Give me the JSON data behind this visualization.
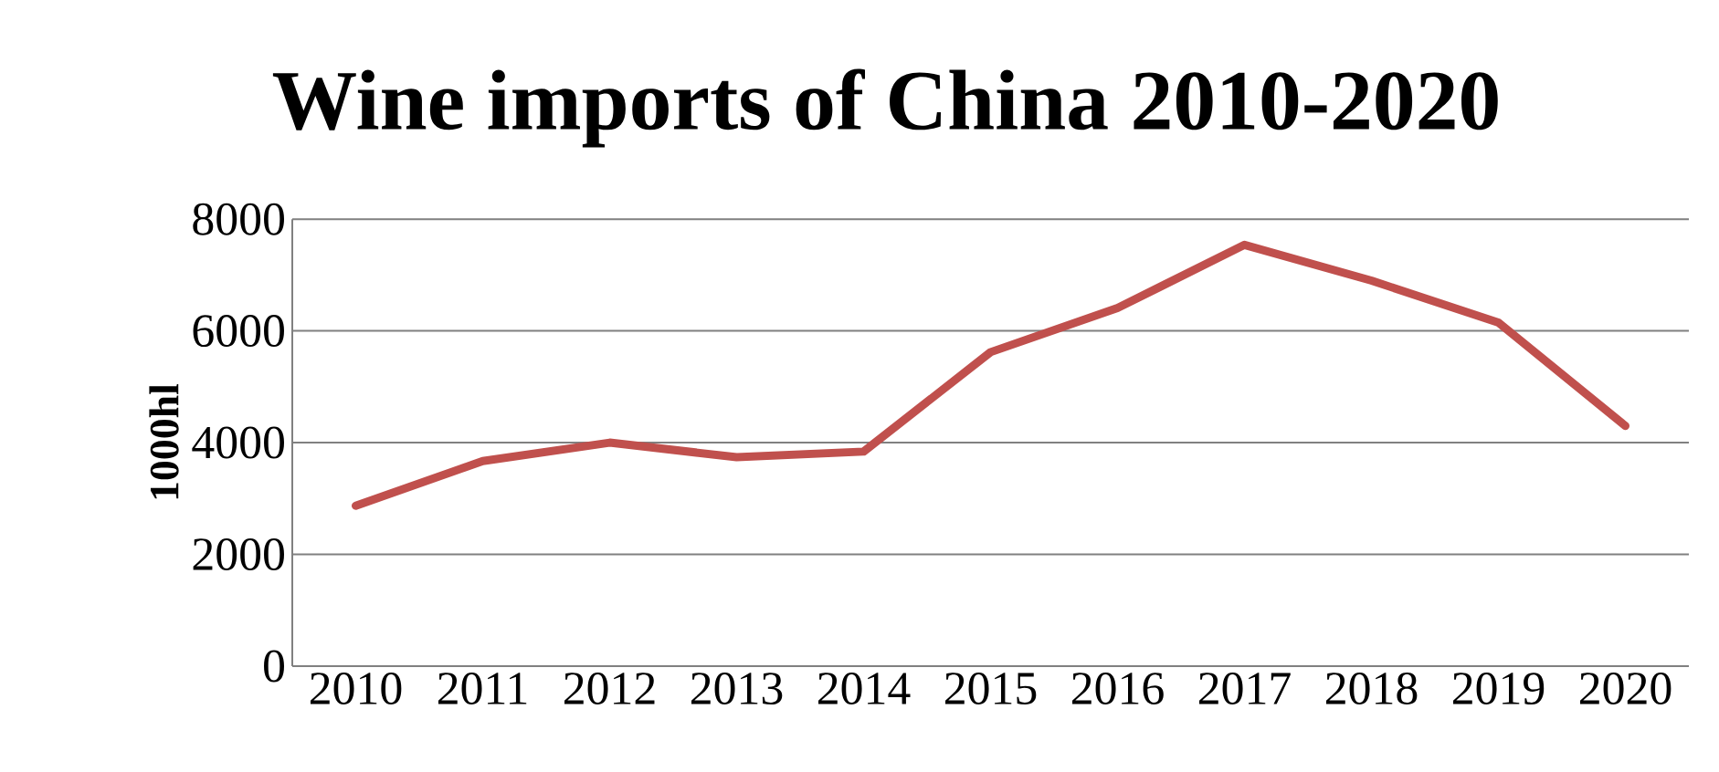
{
  "chart_data": {
    "type": "line",
    "title": "Wine imports of China 2010-2020",
    "ylabel": "1000hl",
    "categories": [
      "2010",
      "2011",
      "2012",
      "2013",
      "2014",
      "2015",
      "2016",
      "2017",
      "2018",
      "2019",
      "2020"
    ],
    "series": [
      {
        "color": "#c0504d",
        "values": [
          2870,
          3670,
          4000,
          3740,
          3840,
          5620,
          6410,
          7540,
          6900,
          6150,
          4300
        ]
      }
    ],
    "ylim": [
      0,
      8000
    ],
    "yticks": [
      0,
      2000,
      4000,
      6000,
      8000
    ],
    "grid": "y"
  }
}
